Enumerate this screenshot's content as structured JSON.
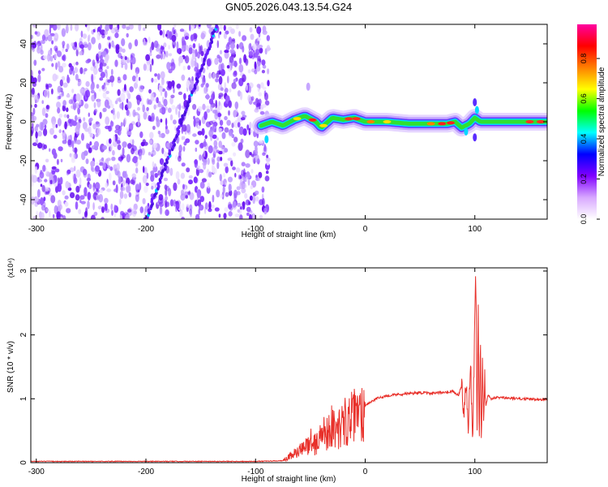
{
  "title": "GN05.2026.043.13.54.G24",
  "colorbar": {
    "label": "Normalized spectral amplitude",
    "ticks": [
      "0.0",
      "0.2",
      "0.4",
      "0.6",
      "0.8"
    ],
    "stops": [
      "#ffffff",
      "#d8a8ff",
      "#8000ff",
      "#0000ff",
      "#00ffff",
      "#00ff00",
      "#ffff00",
      "#ff8000",
      "#ff0000",
      "#ff00a0"
    ]
  },
  "chart_data": [
    {
      "type": "heatmap",
      "name": "spectrogram",
      "xlabel": "Height of straight line (km)",
      "ylabel": "Frequency (Hz)",
      "xlim": [
        -305,
        166
      ],
      "ylim": [
        -50,
        50
      ],
      "xticks": [
        "-300",
        "-200",
        "-100",
        "0",
        "100"
      ],
      "xtick_values": [
        -300,
        -200,
        -100,
        0,
        100
      ],
      "yticks": [
        "40",
        "20",
        "0",
        "-20",
        "-40"
      ],
      "ytick_values": [
        40,
        20,
        0,
        -20,
        -40
      ],
      "noise_region_x": [
        -305,
        -88
      ],
      "diagonal_line": {
        "x": [
          -200,
          -135
        ],
        "y": [
          -50,
          50
        ]
      },
      "ridge": {
        "x": [
          -95,
          -85,
          -75,
          -65,
          -55,
          -45,
          -40,
          -30,
          -20,
          -10,
          0,
          20,
          40,
          60,
          75,
          82,
          88,
          95,
          100,
          105,
          120,
          140,
          166
        ],
        "y": [
          -2,
          0,
          -2,
          1,
          3,
          0,
          -3,
          2,
          1,
          2,
          0,
          0,
          -1,
          -1,
          -1,
          0,
          -3,
          -1,
          2,
          0,
          0,
          0,
          0
        ]
      }
    },
    {
      "type": "line",
      "name": "snr",
      "xlabel": "Height of straight line (km)",
      "ylabel": "SNR (10 * v/v)",
      "multiplier": "(x10⁴)",
      "xlim": [
        -305,
        166
      ],
      "ylim": [
        0,
        3.05
      ],
      "xticks": [
        "-300",
        "-200",
        "-100",
        "0",
        "100"
      ],
      "xtick_values": [
        -300,
        -200,
        -100,
        0,
        100
      ],
      "yticks": [
        "0",
        "1",
        "2",
        "3"
      ],
      "ytick_values": [
        0,
        1,
        2,
        3
      ],
      "series": [
        {
          "name": "SNR",
          "color": "#e8302a",
          "x": [
            -305,
            -200,
            -100,
            -75,
            -65,
            -55,
            -50,
            -45,
            -40,
            -35,
            -30,
            -25,
            -20,
            -15,
            -10,
            -5,
            0,
            10,
            20,
            30,
            40,
            50,
            60,
            70,
            80,
            85,
            88,
            90,
            92,
            94,
            96,
            98,
            100,
            101,
            102,
            103,
            104,
            105,
            106,
            107,
            108,
            109,
            110,
            112,
            115,
            120,
            140,
            166
          ],
          "values": [
            0.02,
            0.02,
            0.02,
            0.03,
            0.15,
            0.25,
            0.4,
            0.3,
            0.5,
            0.55,
            0.65,
            0.55,
            0.7,
            0.75,
            0.8,
            0.85,
            0.9,
            1.0,
            1.05,
            1.07,
            1.08,
            1.1,
            1.08,
            1.1,
            1.12,
            1.05,
            1.2,
            0.7,
            1.4,
            0.5,
            1.6,
            0.3,
            2.3,
            3.05,
            0.4,
            2.6,
            0.15,
            2.1,
            0.2,
            1.8,
            0.6,
            1.4,
            0.9,
            1.05,
            1.0,
            1.02,
            1.0,
            0.99
          ]
        }
      ]
    }
  ]
}
